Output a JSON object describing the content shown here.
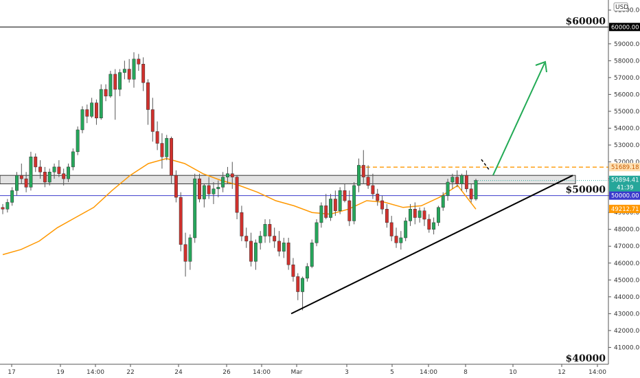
{
  "chart_data": {
    "type": "candlestick",
    "currency": "USD",
    "x_ticks": [
      "17",
      "19",
      "14:00",
      "22",
      "24",
      "26",
      "14:00",
      "Mar",
      "3",
      "5",
      "14:00",
      "8",
      "10",
      "12",
      "14:00"
    ],
    "y_ticks": [
      41000,
      42000,
      43000,
      44000,
      45000,
      46000,
      47000,
      48000,
      49000,
      50000,
      51000,
      52000,
      53000,
      54000,
      55000,
      56000,
      57000,
      58000,
      59000,
      60000,
      61000
    ],
    "ylim": [
      40000,
      61600
    ],
    "levels": [
      {
        "value": 60000,
        "label": "$60000",
        "tag": "60000.00",
        "color": "#000000"
      },
      {
        "value": 50000,
        "label": "$50000",
        "tag": "50000.00",
        "color": "#3a3acc"
      },
      {
        "value": 40000,
        "label": "$40000"
      }
    ],
    "resistance_dashed": {
      "value": 51689.18,
      "tag": "51689.18",
      "color": "#ff9800"
    },
    "last_price": {
      "value": 50894.41,
      "tag": "50894.41",
      "countdown": "41:39",
      "color": "#26a69a"
    },
    "ma": {
      "value": 49212.71,
      "tag": "49212.71",
      "color": "#ff9800",
      "points": [
        46500,
        46800,
        47300,
        48100,
        48700,
        49300,
        50300,
        51200,
        51900,
        52200,
        51900,
        51300,
        50900,
        50600,
        50200,
        49700,
        49400,
        49000,
        48900,
        49200,
        49700,
        49600,
        49300,
        49400,
        49900,
        50600,
        49200
      ]
    },
    "candles": [
      [
        49300,
        49500,
        48900,
        49200
      ],
      [
        49200,
        49800,
        49000,
        49600
      ],
      [
        49600,
        50500,
        49400,
        50300
      ],
      [
        50300,
        51400,
        50000,
        51200
      ],
      [
        51200,
        51900,
        50700,
        51000
      ],
      [
        51000,
        51400,
        50200,
        50500
      ],
      [
        50500,
        52600,
        50300,
        52300
      ],
      [
        52300,
        52500,
        51400,
        51700
      ],
      [
        51700,
        52100,
        51000,
        51400
      ],
      [
        51400,
        51700,
        50500,
        50800
      ],
      [
        50800,
        51600,
        50600,
        51400
      ],
      [
        51400,
        51900,
        51000,
        51700
      ],
      [
        51700,
        52100,
        51100,
        51300
      ],
      [
        51300,
        51600,
        50600,
        51000
      ],
      [
        51000,
        51900,
        50800,
        51700
      ],
      [
        51700,
        52800,
        51500,
        52600
      ],
      [
        52600,
        54100,
        52400,
        53900
      ],
      [
        53900,
        55300,
        53700,
        55100
      ],
      [
        55100,
        55400,
        54300,
        54700
      ],
      [
        54700,
        55800,
        54600,
        55500
      ],
      [
        55500,
        55700,
        54200,
        54600
      ],
      [
        54600,
        56600,
        54500,
        56300
      ],
      [
        56300,
        56600,
        55600,
        55900
      ],
      [
        55900,
        57400,
        55800,
        57200
      ],
      [
        57200,
        57500,
        54500,
        56300
      ],
      [
        56300,
        57500,
        55900,
        57300
      ],
      [
        57300,
        58000,
        56900,
        57500
      ],
      [
        57500,
        58100,
        56700,
        56900
      ],
      [
        56900,
        58500,
        56400,
        58100
      ],
      [
        58100,
        58400,
        57400,
        57800
      ],
      [
        57800,
        58200,
        56200,
        56700
      ],
      [
        56700,
        56900,
        54200,
        55100
      ],
      [
        55100,
        55800,
        53200,
        53800
      ],
      [
        53800,
        54400,
        52700,
        53100
      ],
      [
        53100,
        53700,
        51600,
        52300
      ],
      [
        52300,
        53600,
        52100,
        53400
      ],
      [
        53400,
        53500,
        50700,
        51200
      ],
      [
        51200,
        51500,
        49600,
        49900
      ],
      [
        49900,
        50200,
        46700,
        47100
      ],
      [
        47100,
        47800,
        45200,
        46100
      ],
      [
        46100,
        47700,
        45600,
        47500
      ],
      [
        47500,
        51300,
        47200,
        51000
      ],
      [
        51000,
        51300,
        49600,
        49800
      ],
      [
        49800,
        50700,
        49300,
        50600
      ],
      [
        50600,
        51100,
        49800,
        50100
      ],
      [
        50100,
        50800,
        49500,
        50400
      ],
      [
        50400,
        50900,
        49900,
        50500
      ],
      [
        50500,
        51400,
        50200,
        51100
      ],
      [
        51100,
        51700,
        50700,
        51300
      ],
      [
        51300,
        52000,
        50400,
        51100
      ],
      [
        51100,
        51200,
        48600,
        49000
      ],
      [
        49000,
        49400,
        47300,
        47600
      ],
      [
        47600,
        48100,
        46900,
        47300
      ],
      [
        47300,
        47800,
        45800,
        46100
      ],
      [
        46100,
        47400,
        45600,
        47200
      ],
      [
        47200,
        47900,
        46800,
        47600
      ],
      [
        47600,
        48600,
        47200,
        48300
      ],
      [
        48300,
        48600,
        47200,
        47600
      ],
      [
        47600,
        48100,
        46900,
        47300
      ],
      [
        47300,
        47900,
        46400,
        46700
      ],
      [
        46700,
        47500,
        46300,
        47200
      ],
      [
        47200,
        47500,
        45600,
        45900
      ],
      [
        45900,
        46300,
        44900,
        45200
      ],
      [
        45200,
        45400,
        43800,
        44300
      ],
      [
        44300,
        45200,
        43200,
        45100
      ],
      [
        45100,
        46000,
        44900,
        45800
      ],
      [
        45800,
        47400,
        45700,
        47200
      ],
      [
        47200,
        48600,
        47000,
        48400
      ],
      [
        48400,
        49600,
        48100,
        49400
      ],
      [
        49400,
        50100,
        48600,
        48700
      ],
      [
        48700,
        50100,
        48500,
        49800
      ],
      [
        49800,
        50300,
        48800,
        49100
      ],
      [
        49100,
        50500,
        48900,
        50300
      ],
      [
        50300,
        50700,
        49600,
        49700
      ],
      [
        49700,
        50300,
        48200,
        48500
      ],
      [
        48500,
        50800,
        48300,
        50600
      ],
      [
        50600,
        52200,
        50200,
        51800
      ],
      [
        51800,
        52700,
        50700,
        51100
      ],
      [
        51100,
        51800,
        50400,
        50600
      ],
      [
        50600,
        51300,
        49800,
        50100
      ],
      [
        50100,
        50400,
        49400,
        49700
      ],
      [
        49700,
        50000,
        48900,
        49200
      ],
      [
        49200,
        49500,
        48100,
        48400
      ],
      [
        48400,
        48800,
        47300,
        47600
      ],
      [
        47600,
        48100,
        46900,
        47200
      ],
      [
        47200,
        47900,
        46800,
        47500
      ],
      [
        47500,
        48700,
        47300,
        48500
      ],
      [
        48500,
        49500,
        48200,
        49200
      ],
      [
        49200,
        49600,
        48300,
        48700
      ],
      [
        48700,
        49300,
        48400,
        49100
      ],
      [
        49100,
        49300,
        48200,
        48600
      ],
      [
        48600,
        48900,
        47800,
        48000
      ],
      [
        48000,
        48700,
        47700,
        48400
      ],
      [
        48400,
        49400,
        48200,
        49300
      ],
      [
        49300,
        50200,
        49100,
        50000
      ],
      [
        50000,
        51000,
        49700,
        50800
      ],
      [
        50800,
        51300,
        50400,
        51100
      ],
      [
        51100,
        51500,
        50500,
        50700
      ],
      [
        50700,
        51300,
        50300,
        51200
      ],
      [
        51200,
        51500,
        50200,
        50400
      ],
      [
        50400,
        50700,
        49600,
        49800
      ],
      [
        49800,
        51000,
        49700,
        50900
      ]
    ],
    "trendline": {
      "from": [
        43000,
        0.455
      ],
      "to": [
        51200,
        0.895
      ],
      "color": "#000000"
    },
    "arrow_color": "#22aa55",
    "zone": {
      "low": 50700,
      "high": 51200
    }
  }
}
